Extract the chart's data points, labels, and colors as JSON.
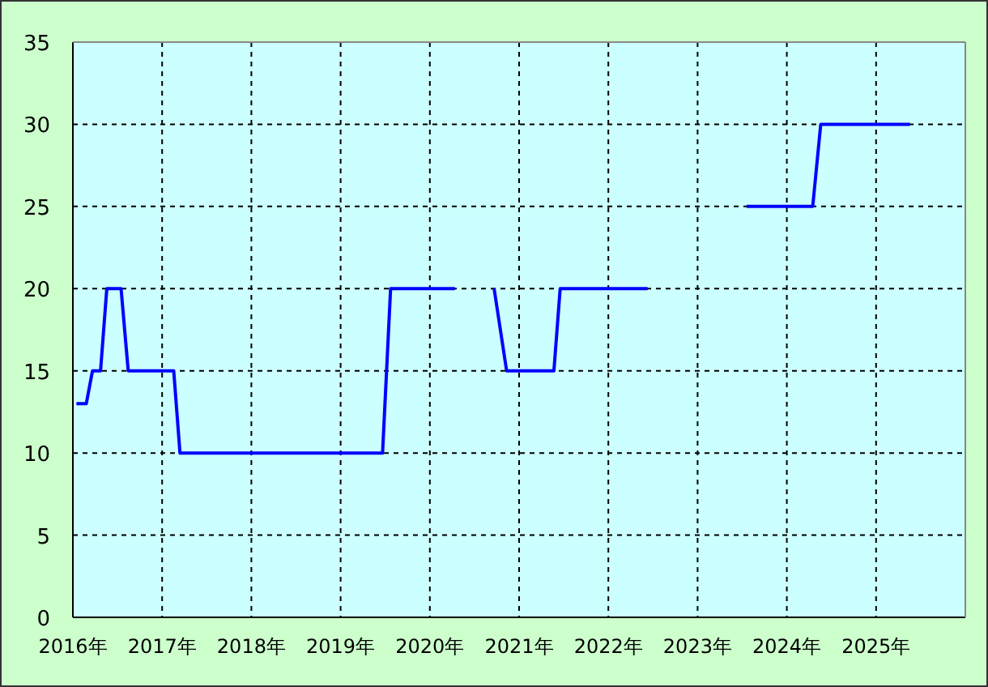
{
  "chart_data": {
    "type": "line",
    "line_style": "solid",
    "grid": true,
    "series": [
      {
        "color": "#0000ff",
        "x": [
          2016.04,
          2016.15,
          2016.22,
          2016.31,
          2016.38,
          2016.54,
          2016.62,
          2017.13,
          2017.2,
          2019.47,
          2019.56,
          2020.28
        ],
        "values": [
          13,
          13,
          15,
          15,
          20,
          20,
          15,
          15,
          10,
          10,
          20,
          20
        ]
      },
      {
        "color": "#0000ff",
        "x": [
          2020.72,
          2020.86,
          2021.39,
          2021.46,
          2022.44
        ],
        "values": [
          20,
          15,
          15,
          20,
          20
        ]
      },
      {
        "color": "#0000ff",
        "x": [
          2023.55,
          2024.29,
          2024.38,
          2025.38
        ],
        "values": [
          25,
          25,
          30,
          30
        ]
      }
    ],
    "xlim": [
      2016,
      2026
    ],
    "ylim": [
      0,
      35
    ],
    "xticks": [
      {
        "value": 2016,
        "label": "2016年"
      },
      {
        "value": 2017,
        "label": "2017年"
      },
      {
        "value": 2018,
        "label": "2018年"
      },
      {
        "value": 2019,
        "label": "2019年"
      },
      {
        "value": 2020,
        "label": "2020年"
      },
      {
        "value": 2021,
        "label": "2021年"
      },
      {
        "value": 2022,
        "label": "2022年"
      },
      {
        "value": 2023,
        "label": "2023年"
      },
      {
        "value": 2024,
        "label": "2024年"
      },
      {
        "value": 2025,
        "label": "2025年"
      }
    ],
    "yticks": [
      0,
      5,
      10,
      15,
      20,
      25,
      30,
      35
    ]
  }
}
